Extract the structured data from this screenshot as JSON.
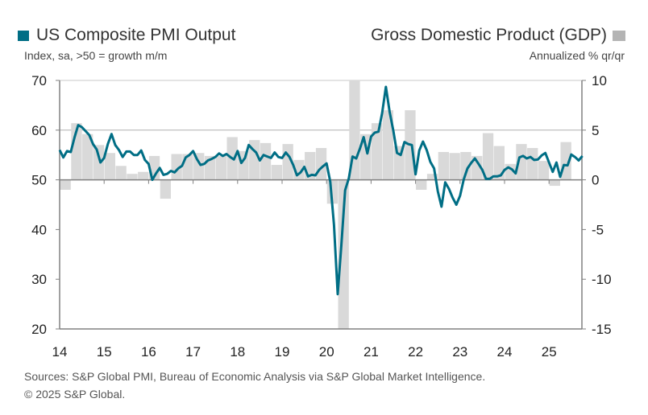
{
  "chart_data": {
    "type": "bar+line",
    "left_legend": "US Composite PMI Output",
    "left_unit": "Index, sa, >50 = growth m/m",
    "right_legend": "Gross Domestic Product (GDP)",
    "right_unit": "Annualized % qr/qr",
    "x_ticks": [
      "14",
      "15",
      "16",
      "17",
      "18",
      "19",
      "20",
      "21",
      "22",
      "23",
      "24",
      "25"
    ],
    "left_ylim": [
      20,
      70
    ],
    "left_ticks": [
      "70",
      "60",
      "50",
      "40",
      "30",
      "20"
    ],
    "right_ylim": [
      -15,
      10
    ],
    "right_ticks": [
      "10",
      "5",
      "0",
      "-5",
      "-10",
      "-15"
    ],
    "grid": "horizontal at 60 and 50",
    "colors": {
      "pmi": "#006e85",
      "gdp": "#d9d9d9"
    },
    "pmi_series": {
      "name": "US Composite PMI Output",
      "start": "2014-01",
      "frequency": "monthly",
      "values": [
        56.0,
        54.5,
        55.8,
        55.6,
        58.5,
        61.0,
        60.6,
        59.8,
        59.0,
        57.2,
        56.1,
        53.5,
        54.4,
        57.2,
        59.2,
        57.0,
        56.0,
        54.6,
        55.7,
        55.7,
        55.0,
        55.0,
        55.9,
        54.0,
        53.2,
        50.0,
        51.3,
        52.4,
        51.0,
        51.2,
        51.8,
        51.5,
        52.3,
        52.8,
        54.5,
        55.0,
        55.8,
        54.2,
        53.0,
        53.2,
        53.9,
        54.2,
        54.6,
        55.3,
        54.8,
        55.2,
        54.6,
        54.1,
        55.8,
        53.4,
        54.4,
        57.0,
        56.2,
        55.5,
        53.9,
        55.0,
        54.7,
        54.4,
        55.5,
        54.6,
        54.4,
        55.5,
        54.6,
        53.0,
        50.9,
        51.5,
        52.6,
        50.7,
        51.0,
        50.9,
        52.0,
        52.7,
        53.3,
        49.6,
        40.9,
        27.0,
        37.0,
        47.9,
        50.3,
        54.7,
        54.3,
        56.3,
        58.6,
        55.3,
        58.7,
        59.5,
        59.7,
        63.5,
        68.7,
        63.7,
        59.9,
        55.4,
        55.0,
        57.6,
        57.2,
        57.0,
        51.1,
        55.9,
        57.7,
        56.0,
        53.6,
        52.3,
        47.7,
        44.6,
        49.5,
        48.2,
        46.4,
        45.0,
        46.8,
        50.1,
        52.3,
        53.4,
        54.3,
        53.2,
        52.0,
        50.2,
        50.2,
        50.7,
        50.7,
        50.9,
        52.0,
        52.5,
        52.1,
        51.3,
        54.5,
        54.8,
        54.3,
        54.6,
        54.0,
        54.1,
        54.9,
        55.4,
        53.5,
        51.6,
        53.5,
        50.6,
        53.0,
        52.9,
        55.1,
        54.6,
        53.9,
        54.8
      ]
    },
    "gdp_series": {
      "name": "Gross Domestic Product (GDP)",
      "start": "2014-Q1",
      "frequency": "quarterly",
      "values": [
        -1.0,
        5.7,
        4.6,
        3.5,
        2.7,
        1.4,
        0.6,
        0.8,
        2.4,
        -1.9,
        2.6,
        2.6,
        2.7,
        2.4,
        2.4,
        4.3,
        2.9,
        4.0,
        3.7,
        1.5,
        3.6,
        2.0,
        2.8,
        3.2,
        -2.4,
        -28.0,
        35.0,
        4.6,
        5.7,
        7.0,
        3.4,
        7.0,
        -1.0,
        0.6,
        2.8,
        2.7,
        2.8,
        2.4,
        4.7,
        3.4,
        1.6,
        3.6,
        3.2,
        1.9,
        -0.6,
        3.8
      ]
    }
  },
  "source": {
    "line1": "Sources: S&P Global PMI, Bureau of Economic Analysis via S&P Global Market Intelligence.",
    "line2": "© 2025 S&P Global."
  }
}
